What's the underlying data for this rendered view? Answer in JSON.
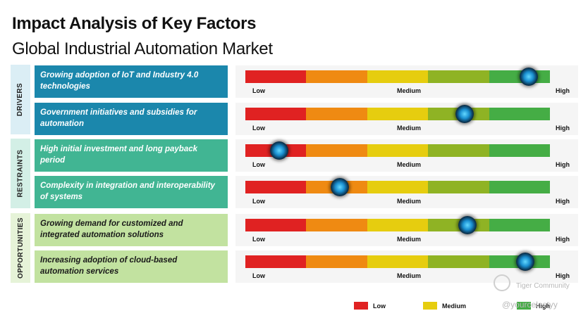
{
  "title": "Impact Analysis of Key Factors",
  "subtitle": "Global Industrial Automation Market",
  "colors": {
    "drivers_box": "#1b87ac",
    "drivers_cat": "#dbeef5",
    "restraints_box": "#41b593",
    "restraints_cat": "#d3efe6",
    "opportunities_box": "#c2e2a0",
    "opportunities_cat": "#e6f3d8",
    "bar_segments": [
      "#e02222",
      "#ef8a12",
      "#e6cd0f",
      "#8fb324",
      "#45ad45"
    ]
  },
  "scale": {
    "low": "Low",
    "medium": "Medium",
    "high": "High"
  },
  "categories": [
    {
      "name": "DRIVERS",
      "factors": [
        {
          "text": "Growing adoption of IoT and Industry 4.0 technologies",
          "impact": 0.93
        },
        {
          "text": "Government initiatives and subsidies for automation",
          "impact": 0.72
        }
      ]
    },
    {
      "name": "RESTRAINTS",
      "factors": [
        {
          "text": "High initial investment and long payback period",
          "impact": 0.11
        },
        {
          "text": "Complexity in integration and interoperability of systems",
          "impact": 0.31
        }
      ]
    },
    {
      "name": "OPPORTUNITIES",
      "factors": [
        {
          "text": "Growing demand for customized and integrated automation solutions",
          "impact": 0.73
        },
        {
          "text": "Increasing adoption of cloud-based automation services",
          "impact": 0.92
        }
      ]
    }
  ],
  "legend": {
    "low": "Low",
    "medium": "Medium",
    "high": "High"
  },
  "watermark": {
    "brand": "Tiger Community",
    "handle": "@yourcelestyy"
  }
}
